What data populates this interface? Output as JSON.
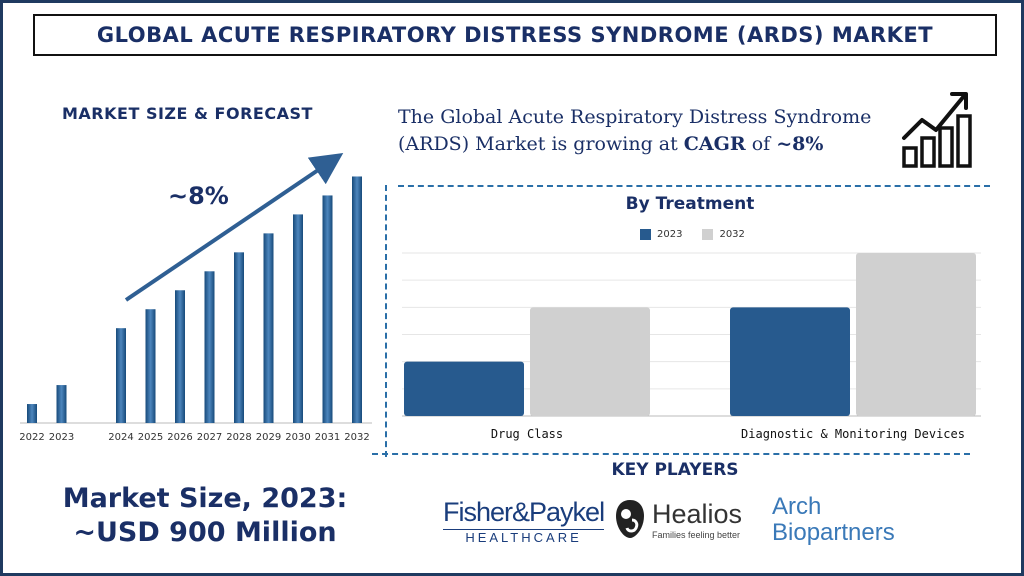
{
  "title": "GLOBAL ACUTE RESPIRATORY DISTRESS SYNDROME (ARDS) MARKET",
  "left": {
    "heading": "MARKET SIZE & FORECAST",
    "cagr_label": "~8%",
    "market_size_line1": "Market Size, 2023:",
    "market_size_line2": "~USD 900 Million"
  },
  "summary": {
    "text_before": "The Global Acute Respiratory Distress Syndrome (ARDS) Market is growing at ",
    "cagr_word": "CAGR",
    "text_mid": " of ",
    "cagr_value": "~8%"
  },
  "key_players": {
    "title": "KEY PLAYERS",
    "players": [
      {
        "top": "Fisher&Paykel",
        "bottom": "HEALTHCARE"
      },
      {
        "name": "Healios",
        "tagline": "Families feeling better"
      },
      {
        "line1": "Arch",
        "line2": "Biopartners"
      }
    ]
  },
  "colors": {
    "primary": "#1a2f66",
    "bar_2023": "#275a8e",
    "bar_2032": "#d0d0d0",
    "divider": "#2a6fa8"
  },
  "chart_data": [
    {
      "type": "bar",
      "title": "MARKET SIZE & FORECAST",
      "categories": [
        "2022",
        "2023",
        "2024",
        "2025",
        "2026",
        "2027",
        "2028",
        "2029",
        "2030",
        "2031",
        "2032"
      ],
      "values": [
        1.0,
        2.0,
        5.0,
        6.0,
        7.0,
        8.0,
        9.0,
        10.0,
        11.0,
        12.0,
        13.0
      ],
      "gap_after_index": 1,
      "trend_arrow": true,
      "annotation": "~8%",
      "ylim": [
        0,
        13.5
      ]
    },
    {
      "type": "bar",
      "title": "By Treatment",
      "categories": [
        "Drug Class",
        "Diagnostic & Monitoring Devices"
      ],
      "series": [
        {
          "name": "2023",
          "values": [
            2,
            4
          ]
        },
        {
          "name": "2032",
          "values": [
            4,
            6
          ]
        }
      ],
      "ylim": [
        0,
        6
      ],
      "grid": true,
      "legend": "top"
    }
  ]
}
